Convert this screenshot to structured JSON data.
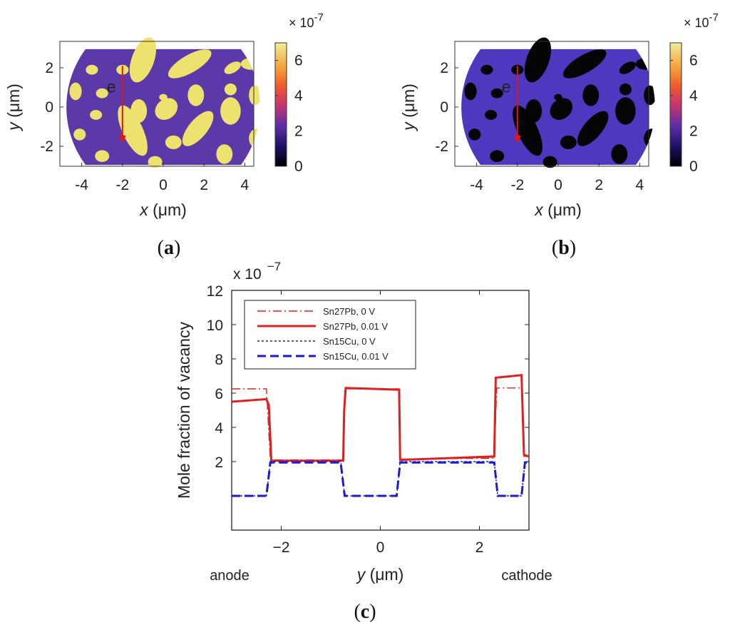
{
  "panels": [
    {
      "label": "a",
      "map": {
        "xlabel_var": "x",
        "xlabel_unit": " (μm)",
        "ylabel_var": "y",
        "ylabel_unit": " (μm)",
        "xticks": [
          "-4",
          "-2",
          "0",
          "2",
          "4"
        ],
        "yticks": [
          "2",
          "0",
          "-2"
        ],
        "colorbar_ticks": [
          "6",
          "4",
          "2",
          "0"
        ],
        "colorbar_scale": "× 10",
        "colorbar_exponent": "-7",
        "matrix_color": "#5b39a8",
        "inclusion_color": "#ede26e",
        "arrow_label": "e",
        "arrow_color": "#e01515"
      }
    },
    {
      "label": "b",
      "map": {
        "xlabel_var": "x",
        "xlabel_unit": " (μm)",
        "ylabel_var": "y",
        "ylabel_unit": " (μm)",
        "xticks": [
          "-4",
          "-2",
          "0",
          "2",
          "4"
        ],
        "yticks": [
          "2",
          "0",
          "-2"
        ],
        "colorbar_ticks": [
          "6",
          "4",
          "2",
          "0"
        ],
        "colorbar_scale": "× 10",
        "colorbar_exponent": "-7",
        "matrix_color": "#4f37bf",
        "inclusion_color": "#050505",
        "arrow_label": "e",
        "arrow_color": "#e01515"
      }
    },
    {
      "label": "c"
    }
  ],
  "chart_data": {
    "type": "line",
    "xlabel_var": "y",
    "xlabel_unit": " (μm)",
    "ylabel": "Mole fraction of vacancy",
    "y_scale_text": "x 10",
    "y_scale_exponent": "−7",
    "xlim": [
      -3,
      3
    ],
    "ylim": [
      -2,
      12
    ],
    "xticks": [
      "−2",
      "0",
      "2"
    ],
    "xtick_values": [
      -2,
      0,
      2
    ],
    "yticks": [
      "12",
      "10",
      "8",
      "6",
      "4",
      "2"
    ],
    "ytick_values": [
      12,
      10,
      8,
      6,
      4,
      2
    ],
    "annotations": {
      "left": "anode",
      "right": "cathode"
    },
    "legend_position": "top-left",
    "series": [
      {
        "name": "Sn27Pb, 0 V",
        "color": "#e02020",
        "style": "dashdot",
        "width": 1.4,
        "x": [
          -3,
          -2.3,
          -2.22,
          -0.75,
          -0.72,
          0.38,
          0.4,
          2.3,
          2.35,
          2.85,
          2.9,
          3
        ],
        "y": [
          6.25,
          6.25,
          2.1,
          2.1,
          6.25,
          6.25,
          2.15,
          2.2,
          6.3,
          6.3,
          2.3,
          2.3
        ]
      },
      {
        "name": "Sn27Pb, 0.01 V",
        "color": "#e02020",
        "style": "solid",
        "width": 3,
        "x": [
          -3,
          -2.3,
          -2.25,
          -2.2,
          -0.75,
          -0.73,
          -0.7,
          0.38,
          0.4,
          2.3,
          2.33,
          2.85,
          2.9,
          3
        ],
        "y": [
          5.5,
          5.65,
          5.3,
          2.05,
          2.05,
          5.0,
          6.3,
          6.2,
          2.1,
          2.3,
          6.9,
          7.05,
          2.4,
          2.3
        ]
      },
      {
        "name": "Sn15Cu, 0 V",
        "color": "#1a1acf",
        "style": "dotted",
        "width": 1.4,
        "x": [
          -3,
          -2.3,
          -2.22,
          -0.8,
          -0.72,
          0.33,
          0.4,
          2.3,
          2.37,
          2.85,
          2.92,
          3
        ],
        "y": [
          0,
          0,
          2.0,
          2.0,
          0,
          0,
          2.0,
          2.0,
          0,
          0,
          2.0,
          2.0
        ]
      },
      {
        "name": "Sn15Cu, 0.01 V",
        "color": "#1a1acf",
        "style": "dashed",
        "width": 3,
        "x": [
          -3,
          -2.3,
          -2.22,
          -0.8,
          -0.72,
          0.33,
          0.4,
          2.3,
          2.37,
          2.85,
          2.92,
          3
        ],
        "y": [
          0,
          0,
          1.95,
          1.95,
          0,
          0,
          1.95,
          1.95,
          0,
          0,
          1.95,
          1.95
        ]
      }
    ]
  }
}
